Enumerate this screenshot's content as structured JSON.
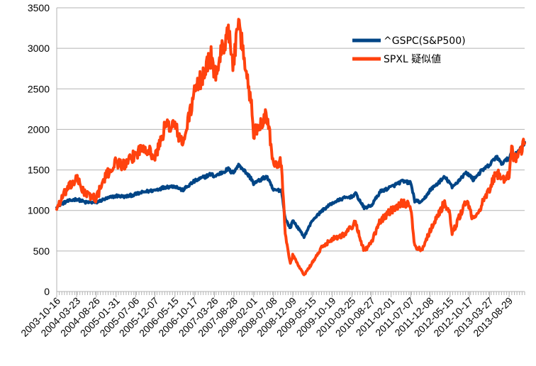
{
  "chart_data": {
    "type": "line",
    "title": "",
    "xlabel": "",
    "ylabel": "",
    "ylim": [
      0,
      3500
    ],
    "yticks": [
      0,
      500,
      1000,
      1500,
      2000,
      2500,
      3000,
      3500
    ],
    "xlim": [
      "2003-10-16",
      "2013-12-31"
    ],
    "xticks": [
      "2003-10-16",
      "2004-03-23",
      "2004-08-26",
      "2005-01-31",
      "2005-07-06",
      "2005-12-07",
      "2006-05-15",
      "2006-10-17",
      "2007-03-26",
      "2007-08-28",
      "2008-02-01",
      "2008-07-08",
      "2008-12-09",
      "2009-05-15",
      "2009-10-19",
      "2010-03-25",
      "2010-08-27",
      "2011-02-01",
      "2011-07-07",
      "2011-12-08",
      "2012-05-15",
      "2012-10-17",
      "2013-03-27",
      "2013-08-29"
    ],
    "grid": true,
    "legend_position": "top-right",
    "series": [
      {
        "name": "^GSPC(S&P500)",
        "color": "#004586",
        "x": [
          "2003-10-16",
          "2004-01-01",
          "2004-03-23",
          "2004-06-01",
          "2004-08-26",
          "2004-11-01",
          "2005-01-31",
          "2005-04-15",
          "2005-07-06",
          "2005-09-15",
          "2005-12-07",
          "2006-03-01",
          "2006-05-15",
          "2006-07-15",
          "2006-10-17",
          "2007-01-15",
          "2007-02-27",
          "2007-03-26",
          "2007-07-15",
          "2007-08-15",
          "2007-10-09",
          "2008-01-20",
          "2008-02-01",
          "2008-05-15",
          "2008-07-08",
          "2008-09-10",
          "2008-10-10",
          "2008-11-20",
          "2008-12-09",
          "2009-03-09",
          "2009-05-15",
          "2009-08-01",
          "2009-10-19",
          "2010-01-15",
          "2010-03-25",
          "2010-04-23",
          "2010-07-01",
          "2010-08-27",
          "2010-11-05",
          "2011-02-01",
          "2011-04-29",
          "2011-07-07",
          "2011-08-08",
          "2011-10-03",
          "2011-12-08",
          "2012-04-02",
          "2012-05-15",
          "2012-06-01",
          "2012-09-14",
          "2012-10-17",
          "2012-11-15",
          "2013-01-15",
          "2013-03-27",
          "2013-05-21",
          "2013-06-24",
          "2013-08-29",
          "2013-09-18",
          "2013-10-08",
          "2013-12-31"
        ],
        "values": [
          1050,
          1110,
          1140,
          1100,
          1100,
          1140,
          1180,
          1170,
          1200,
          1230,
          1250,
          1290,
          1300,
          1250,
          1360,
          1420,
          1450,
          1420,
          1510,
          1460,
          1565,
          1380,
          1330,
          1420,
          1250,
          1250,
          900,
          780,
          880,
          676,
          880,
          1000,
          1090,
          1150,
          1170,
          1210,
          1030,
          1060,
          1230,
          1290,
          1360,
          1340,
          1120,
          1100,
          1250,
          1410,
          1340,
          1280,
          1460,
          1440,
          1380,
          1480,
          1560,
          1670,
          1580,
          1640,
          1720,
          1660,
          1840
        ]
      },
      {
        "name": "SPXL 疑似値",
        "color": "#ff420e",
        "x": [
          "2003-10-16",
          "2004-01-01",
          "2004-03-23",
          "2004-06-01",
          "2004-08-26",
          "2004-11-01",
          "2005-01-31",
          "2005-04-15",
          "2005-07-06",
          "2005-09-15",
          "2005-12-07",
          "2006-03-01",
          "2006-05-15",
          "2006-07-15",
          "2006-10-17",
          "2007-01-15",
          "2007-02-27",
          "2007-03-26",
          "2007-07-15",
          "2007-08-15",
          "2007-10-09",
          "2008-01-20",
          "2008-02-01",
          "2008-05-15",
          "2008-07-08",
          "2008-09-10",
          "2008-10-10",
          "2008-11-20",
          "2008-12-09",
          "2009-03-09",
          "2009-05-15",
          "2009-08-01",
          "2009-10-19",
          "2010-01-15",
          "2010-03-25",
          "2010-04-23",
          "2010-07-01",
          "2010-08-27",
          "2010-11-05",
          "2011-02-01",
          "2011-04-29",
          "2011-07-07",
          "2011-08-08",
          "2011-10-03",
          "2011-12-08",
          "2012-04-02",
          "2012-05-15",
          "2012-06-01",
          "2012-09-14",
          "2012-10-17",
          "2012-11-15",
          "2013-01-15",
          "2013-03-27",
          "2013-05-21",
          "2013-06-24",
          "2013-08-29",
          "2013-09-18",
          "2013-10-08",
          "2013-12-31"
        ],
        "values": [
          1030,
          1250,
          1390,
          1200,
          1150,
          1400,
          1600,
          1550,
          1700,
          1800,
          1650,
          2050,
          2050,
          1800,
          2450,
          2750,
          2900,
          2650,
          3250,
          2800,
          3270,
          2250,
          1950,
          2200,
          1600,
          1600,
          700,
          350,
          450,
          200,
          360,
          550,
          650,
          700,
          800,
          850,
          500,
          600,
          870,
          1000,
          1100,
          1050,
          550,
          520,
          750,
          1100,
          950,
          700,
          1100,
          1050,
          870,
          1050,
          1250,
          1500,
          1350,
          1450,
          1800,
          1600,
          1830
        ]
      }
    ]
  }
}
